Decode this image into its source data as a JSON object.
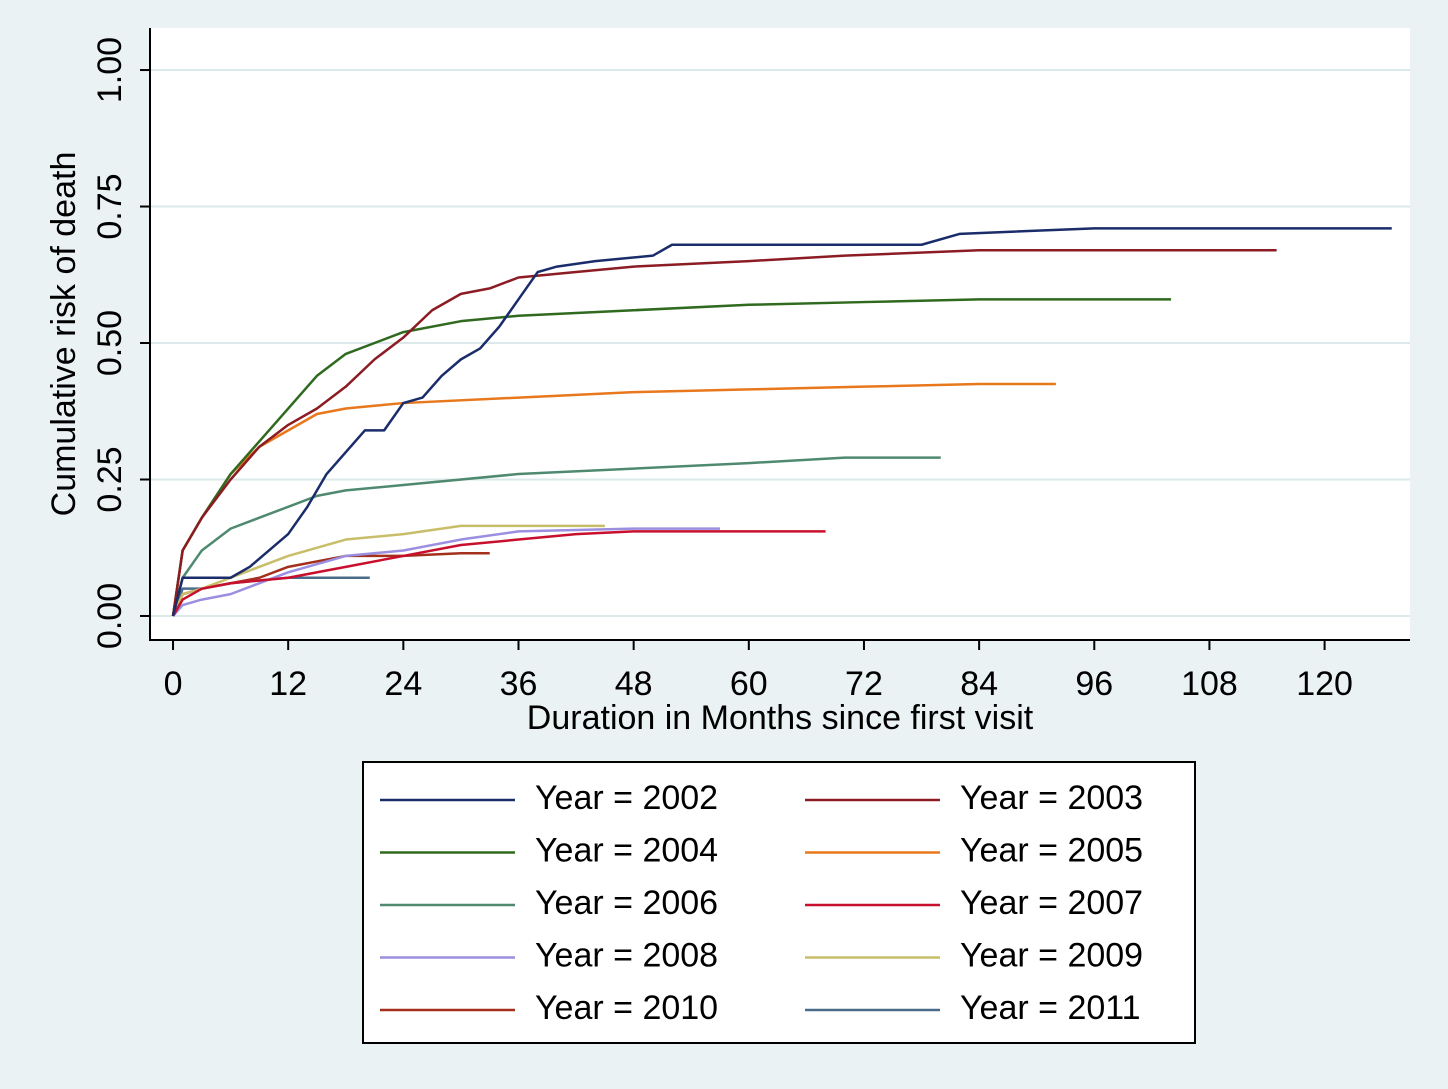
{
  "chart_data": {
    "type": "line",
    "x_label": "Duration in Months since first visit",
    "y_label": "Cumulative risk of death",
    "xlim": [
      -2.4,
      128.9
    ],
    "ylim": [
      -0.044,
      1.077
    ],
    "xticks": [
      0,
      12,
      24,
      36,
      48,
      60,
      72,
      84,
      96,
      108,
      120
    ],
    "yticks": [
      {
        "value": 0,
        "label": "0.00"
      },
      {
        "value": 0.25,
        "label": "0.25"
      },
      {
        "value": 0.5,
        "label": "0.50"
      },
      {
        "value": 0.75,
        "label": "0.75"
      },
      {
        "value": 1,
        "label": "1.00"
      }
    ],
    "grid": true,
    "series": [
      {
        "name": "Year = 2002",
        "color": "#1b2c6b",
        "x": [
          0,
          1,
          6,
          8,
          10,
          12,
          14,
          16,
          18,
          20,
          22,
          24,
          26,
          28,
          30,
          32,
          34,
          36,
          38,
          40,
          44,
          50,
          52,
          66,
          78,
          82,
          96,
          127
        ],
        "values": [
          0,
          0.07,
          0.07,
          0.09,
          0.12,
          0.15,
          0.2,
          0.26,
          0.3,
          0.34,
          0.34,
          0.39,
          0.4,
          0.44,
          0.47,
          0.49,
          0.53,
          0.58,
          0.63,
          0.64,
          0.65,
          0.66,
          0.68,
          0.68,
          0.68,
          0.7,
          0.71,
          0.71
        ]
      },
      {
        "name": "Year = 2003",
        "color": "#8c1c24",
        "x": [
          0,
          1,
          3,
          6,
          9,
          12,
          15,
          18,
          21,
          24,
          27,
          30,
          33,
          36,
          42,
          48,
          60,
          70,
          84,
          115
        ],
        "values": [
          0,
          0.12,
          0.18,
          0.25,
          0.31,
          0.35,
          0.38,
          0.42,
          0.47,
          0.51,
          0.56,
          0.59,
          0.6,
          0.62,
          0.63,
          0.64,
          0.65,
          0.66,
          0.67,
          0.67
        ]
      },
      {
        "name": "Year = 2004",
        "color": "#2f6a1f",
        "x": [
          0,
          1,
          3,
          6,
          9,
          12,
          15,
          18,
          21,
          24,
          30,
          36,
          48,
          60,
          72,
          84,
          104
        ],
        "values": [
          0,
          0.12,
          0.18,
          0.26,
          0.32,
          0.38,
          0.44,
          0.48,
          0.5,
          0.52,
          0.54,
          0.55,
          0.56,
          0.57,
          0.575,
          0.58,
          0.58
        ]
      },
      {
        "name": "Year = 2005",
        "color": "#e8781c",
        "x": [
          0,
          1,
          3,
          6,
          9,
          12,
          15,
          18,
          21,
          24,
          36,
          48,
          60,
          72,
          84,
          92
        ],
        "values": [
          0,
          0.12,
          0.18,
          0.26,
          0.31,
          0.34,
          0.37,
          0.38,
          0.385,
          0.39,
          0.4,
          0.41,
          0.415,
          0.42,
          0.425,
          0.425
        ]
      },
      {
        "name": "Year = 2006",
        "color": "#4f8a70",
        "x": [
          0,
          1,
          3,
          6,
          9,
          12,
          15,
          18,
          24,
          36,
          48,
          60,
          70,
          80
        ],
        "values": [
          0,
          0.07,
          0.12,
          0.16,
          0.18,
          0.2,
          0.22,
          0.23,
          0.24,
          0.26,
          0.27,
          0.28,
          0.29,
          0.29
        ]
      },
      {
        "name": "Year = 2007",
        "color": "#c8102e",
        "x": [
          0,
          1,
          3,
          6,
          12,
          18,
          24,
          30,
          36,
          42,
          48,
          68
        ],
        "values": [
          0,
          0.03,
          0.05,
          0.06,
          0.07,
          0.09,
          0.11,
          0.13,
          0.14,
          0.15,
          0.155,
          0.155
        ]
      },
      {
        "name": "Year = 2008",
        "color": "#9a8fe0",
        "x": [
          0,
          1,
          3,
          6,
          9,
          12,
          18,
          24,
          30,
          36,
          48,
          57
        ],
        "values": [
          0,
          0.02,
          0.03,
          0.04,
          0.06,
          0.08,
          0.11,
          0.12,
          0.14,
          0.155,
          0.16,
          0.16
        ]
      },
      {
        "name": "Year = 2009",
        "color": "#c8be6a",
        "x": [
          0,
          1,
          3,
          6,
          9,
          12,
          18,
          24,
          30,
          36,
          45
        ],
        "values": [
          0,
          0.04,
          0.05,
          0.07,
          0.09,
          0.11,
          0.14,
          0.15,
          0.165,
          0.165,
          0.165
        ]
      },
      {
        "name": "Year = 2010",
        "color": "#a3301c",
        "x": [
          0,
          1,
          3,
          6,
          9,
          12,
          18,
          24,
          30,
          33
        ],
        "values": [
          0,
          0.04,
          0.05,
          0.06,
          0.07,
          0.09,
          0.11,
          0.11,
          0.115,
          0.115
        ]
      },
      {
        "name": "Year = 2011",
        "color": "#4a6c8a",
        "x": [
          0,
          1,
          3,
          6,
          12,
          20.5
        ],
        "values": [
          0,
          0.05,
          0.05,
          0.06,
          0.07,
          0.07
        ]
      }
    ]
  }
}
